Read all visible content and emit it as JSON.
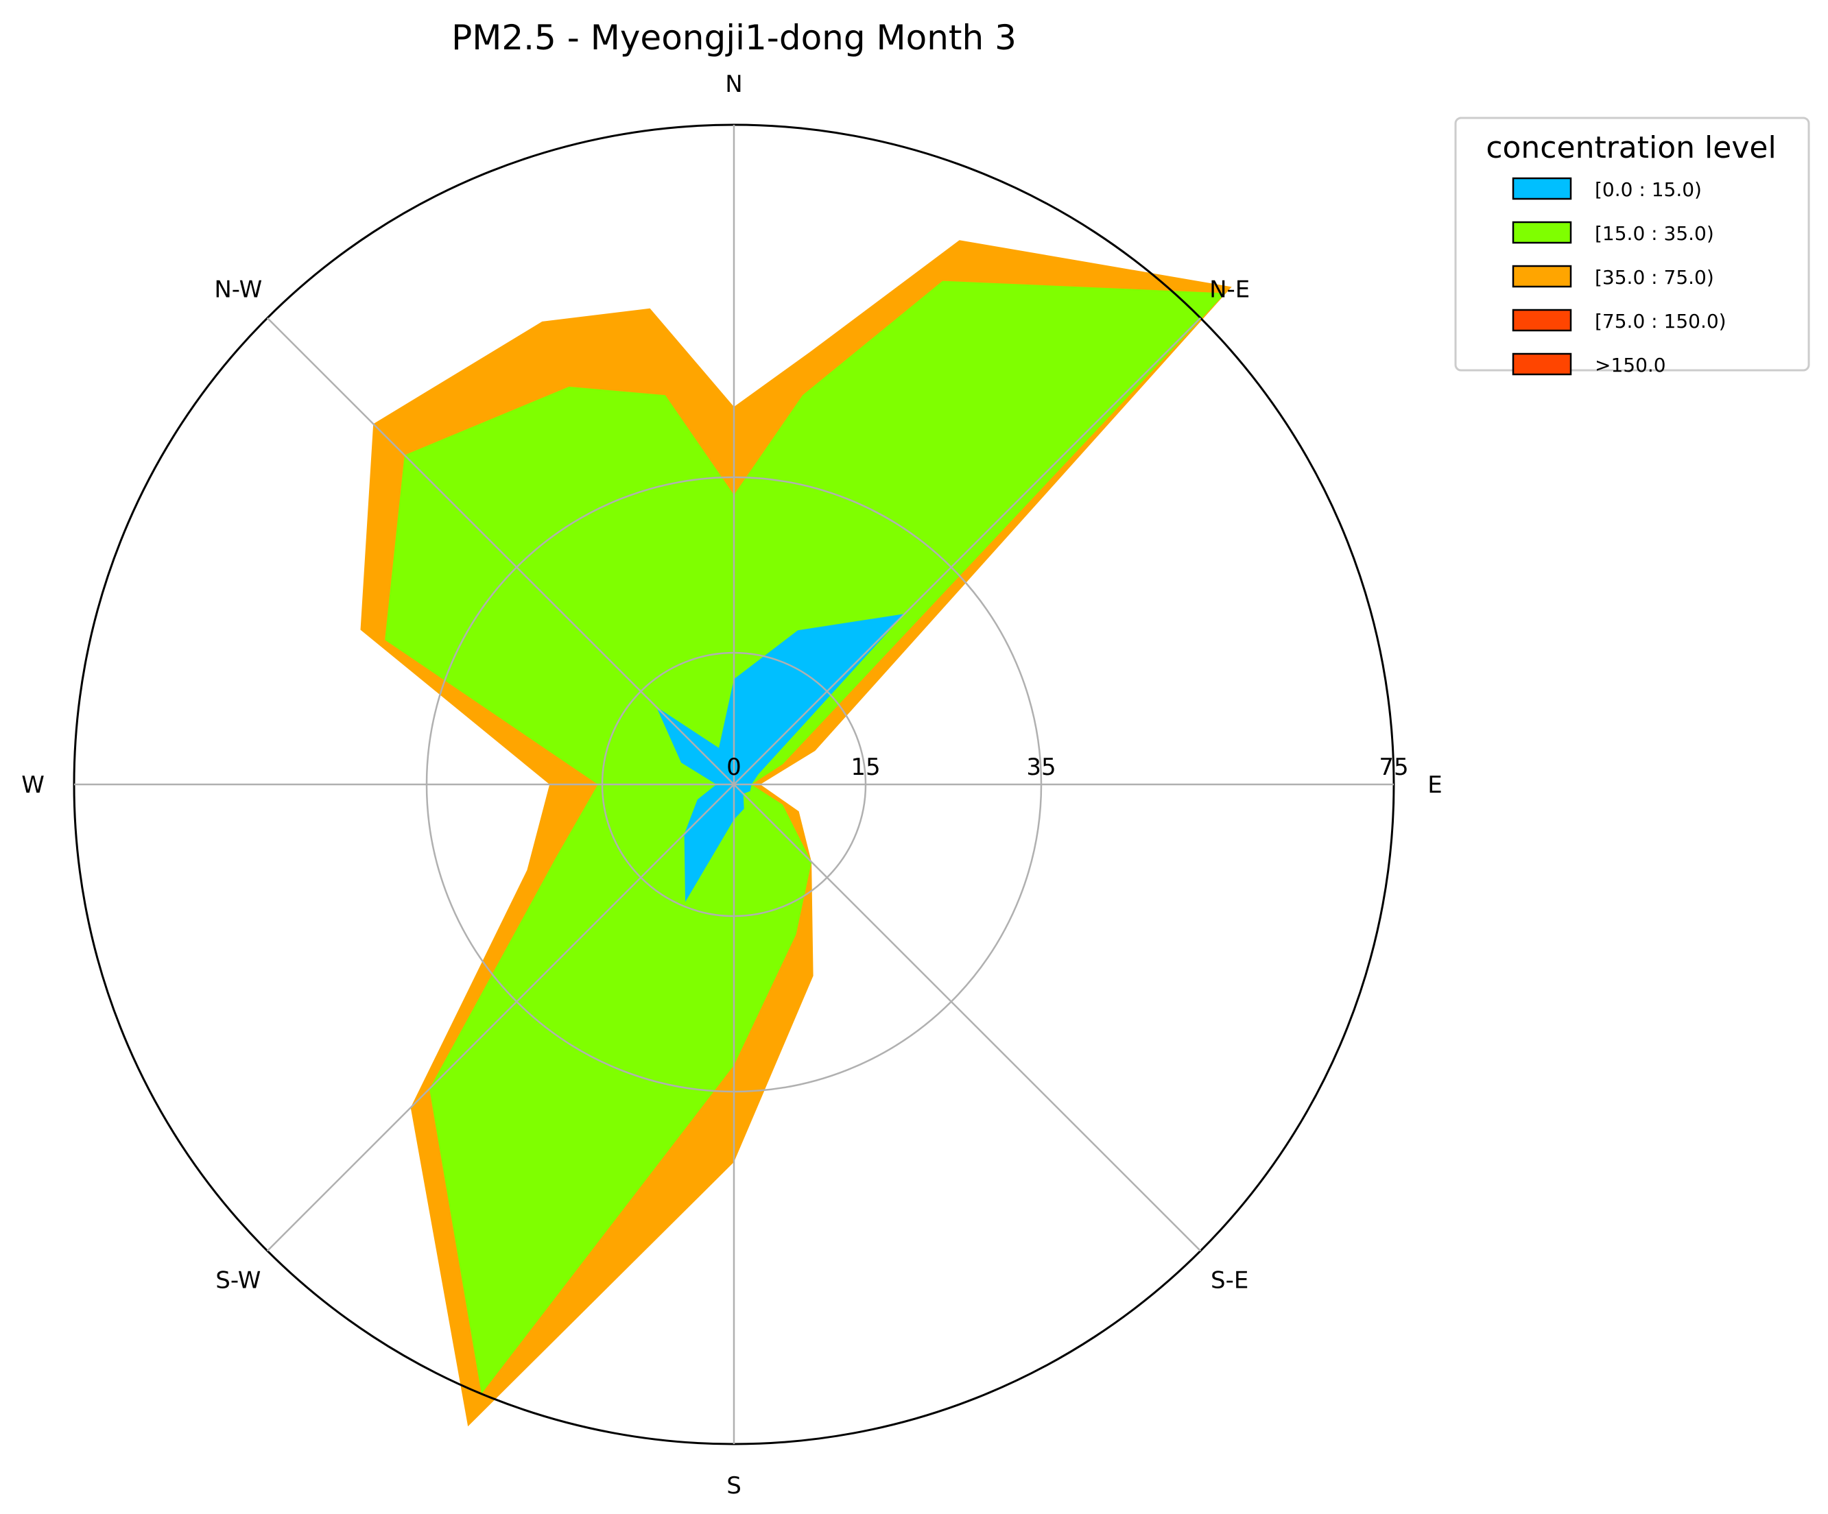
{
  "chart_data": {
    "type": "area",
    "subtype": "polar-windrose",
    "title": "PM2.5 - Myeongji1-dong Month 3",
    "directions": [
      "N",
      "N-E",
      "E",
      "S-E",
      "S",
      "S-W",
      "W",
      "N-W"
    ],
    "radial_ticks": [
      {
        "label": "0",
        "value": 0
      },
      {
        "label": "15",
        "value": 15
      },
      {
        "label": "35",
        "value": 35
      },
      {
        "label": "75",
        "value": 75
      }
    ],
    "grid": true,
    "legend": {
      "title": "concentration level",
      "placement": "upper-right-outside",
      "entries": [
        {
          "label": "[0.0 : 15.0)",
          "color": "#00bfff"
        },
        {
          "label": "[15.0 : 35.0)",
          "color": "#7fff00"
        },
        {
          "label": "[35.0 : 75.0)",
          "color": "#ffa500"
        },
        {
          "label": "[75.0 : 150.0)",
          "color": "#ff4500"
        },
        {
          "label": ">150.0",
          "color": "#ff4500"
        }
      ]
    },
    "series": [
      {
        "name": "[35.0 : 75.0)",
        "color": "#ffa500",
        "points": [
          [
            0,
            43
          ],
          [
            10,
            50
          ],
          [
            22.5,
            67
          ],
          [
            45,
            80
          ],
          [
            67.5,
            10
          ],
          [
            90,
            3
          ],
          [
            112.5,
            8
          ],
          [
            135,
            12.5
          ],
          [
            157.5,
            23.6
          ],
          [
            180,
            43
          ],
          [
            202.5,
            79
          ],
          [
            225,
            52
          ],
          [
            247.5,
            25.5
          ],
          [
            270,
            21
          ],
          [
            292.5,
            46
          ],
          [
            315,
            58
          ],
          [
            337.5,
            57
          ],
          [
            350,
            55
          ]
        ]
      },
      {
        "name": "[15.0 : 35.0)",
        "color": "#7fff00",
        "points": [
          [
            0,
            33
          ],
          [
            10,
            45
          ],
          [
            22.5,
            62
          ],
          [
            45,
            79
          ],
          [
            67.5,
            6
          ],
          [
            90,
            2
          ],
          [
            112.5,
            6
          ],
          [
            135,
            12.5
          ],
          [
            157.5,
            18.5
          ],
          [
            180,
            32
          ],
          [
            202.5,
            75
          ],
          [
            225,
            49
          ],
          [
            247.5,
            22
          ],
          [
            270,
            15.5
          ],
          [
            292.5,
            43
          ],
          [
            315,
            53
          ],
          [
            337.5,
            49
          ],
          [
            350,
            45
          ]
        ]
      },
      {
        "name": "[0.0 : 15.0)",
        "color": "#00bfff",
        "points": [
          [
            0,
            12
          ],
          [
            22.5,
            19
          ],
          [
            45,
            27.5
          ],
          [
            67.5,
            3
          ],
          [
            90,
            2
          ],
          [
            112.5,
            2
          ],
          [
            135,
            1.5
          ],
          [
            157.5,
            3
          ],
          [
            180,
            4
          ],
          [
            202.5,
            14.5
          ],
          [
            225,
            8
          ],
          [
            247.5,
            4.5
          ],
          [
            270,
            2
          ],
          [
            292.5,
            6.5
          ],
          [
            315,
            12.5
          ],
          [
            337.5,
            4.5
          ]
        ]
      }
    ]
  }
}
